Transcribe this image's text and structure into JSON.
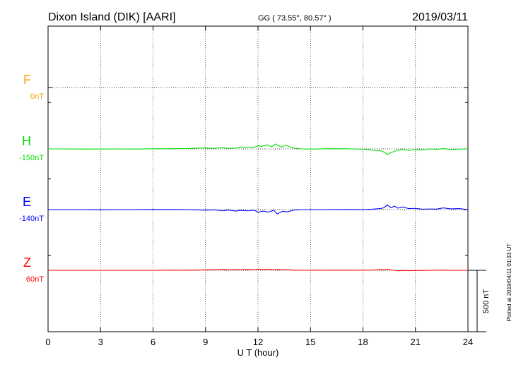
{
  "header": {
    "station": "Dixon Island (DIK)  [AARI]",
    "gg": "GG ( 73.55°,  80.57° )",
    "date": "2019/03/11"
  },
  "footer_note": "Plotted at 2019/04/11 01:33 UT",
  "scale_label": "500 nT",
  "colors": {
    "F": "#f5a000",
    "H": "#00e000",
    "E": "#0000ff",
    "Z": "#ff0000"
  },
  "chart_data": {
    "type": "line",
    "title": "",
    "xlabel": "U T (hour)",
    "ylabel": "",
    "xlim": [
      0,
      24
    ],
    "x_ticks": [
      0,
      3,
      6,
      9,
      12,
      15,
      18,
      21,
      24
    ],
    "x_tick_labels": [
      "0",
      "3",
      "6",
      "9",
      "12",
      "15",
      "18",
      "21",
      "24"
    ],
    "grid": true,
    "scale_bar_nT": 500,
    "series": [
      {
        "name": "F",
        "baseline_label": "0nT",
        "color": "#f5a000",
        "x": [],
        "values": []
      },
      {
        "name": "H",
        "baseline_label": "-150nT",
        "color": "#00e000",
        "x": [
          0,
          1,
          2,
          3,
          4,
          5,
          6,
          7,
          8,
          8.5,
          9,
          9.5,
          10,
          10.3,
          10.7,
          11,
          11.4,
          11.8,
          12,
          12.2,
          12.5,
          12.8,
          13,
          13.3,
          13.6,
          14,
          14.5,
          15,
          16,
          17,
          18,
          18.5,
          19,
          19.2,
          19.4,
          19.6,
          19.8,
          20,
          20.3,
          20.6,
          21,
          21.4,
          21.8,
          22.2,
          22.6,
          23,
          23.5,
          24
        ],
        "values": [
          0,
          0,
          -1,
          -1,
          0,
          -1,
          1,
          2,
          3,
          6,
          8,
          4,
          12,
          4,
          7,
          16,
          10,
          14,
          26,
          20,
          34,
          18,
          40,
          15,
          30,
          8,
          0,
          -2,
          2,
          1,
          -2,
          -10,
          -15,
          -25,
          -46,
          -30,
          -20,
          -10,
          -5,
          -12,
          -5,
          -8,
          0,
          -4,
          3,
          -6,
          -2,
          0
        ]
      },
      {
        "name": "E",
        "baseline_label": "-140nT",
        "color": "#0000ff",
        "x": [
          0,
          1,
          2,
          3,
          4,
          5,
          6,
          7,
          8,
          8.5,
          9,
          9.5,
          10,
          10.3,
          10.7,
          11,
          11.4,
          11.8,
          12,
          12.3,
          12.6,
          12.9,
          13.1,
          13.4,
          13.7,
          14,
          14.5,
          15,
          16,
          17,
          18,
          18.5,
          19,
          19.2,
          19.4,
          19.6,
          19.8,
          20,
          20.3,
          20.6,
          21,
          21.4,
          21.8,
          22.2,
          22.6,
          23,
          23.5,
          24
        ],
        "values": [
          0,
          0,
          0,
          -1,
          0,
          0,
          1,
          1,
          0,
          -2,
          -5,
          -2,
          -10,
          -3,
          -12,
          -6,
          -10,
          -5,
          -22,
          -12,
          -20,
          -5,
          -35,
          -14,
          -18,
          -5,
          0,
          0,
          0,
          1,
          0,
          3,
          8,
          16,
          38,
          15,
          28,
          12,
          22,
          8,
          10,
          3,
          5,
          4,
          14,
          6,
          8,
          0
        ]
      },
      {
        "name": "Z",
        "baseline_label": "60nT",
        "color": "#ff0000",
        "x": [
          0,
          1,
          2,
          3,
          4,
          5,
          6,
          7,
          8,
          8.5,
          9,
          9.5,
          10,
          10.3,
          10.7,
          11,
          11.4,
          11.8,
          12,
          12.3,
          12.6,
          12.9,
          13.1,
          13.4,
          13.7,
          14,
          14.5,
          15,
          16,
          17,
          18,
          18.5,
          19,
          19.2,
          19.4,
          19.6,
          19.8,
          20,
          20.3,
          20.6,
          21,
          21.4,
          21.8,
          22.2,
          22.6,
          23,
          23.5,
          24
        ],
        "values": [
          0,
          0,
          0,
          0,
          0,
          0,
          0,
          1,
          1,
          2,
          4,
          3,
          8,
          3,
          6,
          5,
          7,
          5,
          10,
          6,
          9,
          4,
          7,
          3,
          5,
          2,
          0,
          1,
          1,
          1,
          1,
          2,
          6,
          3,
          10,
          2,
          0,
          -4,
          -2,
          -3,
          -2,
          -1,
          0,
          1,
          1,
          0,
          0,
          0
        ]
      }
    ]
  }
}
